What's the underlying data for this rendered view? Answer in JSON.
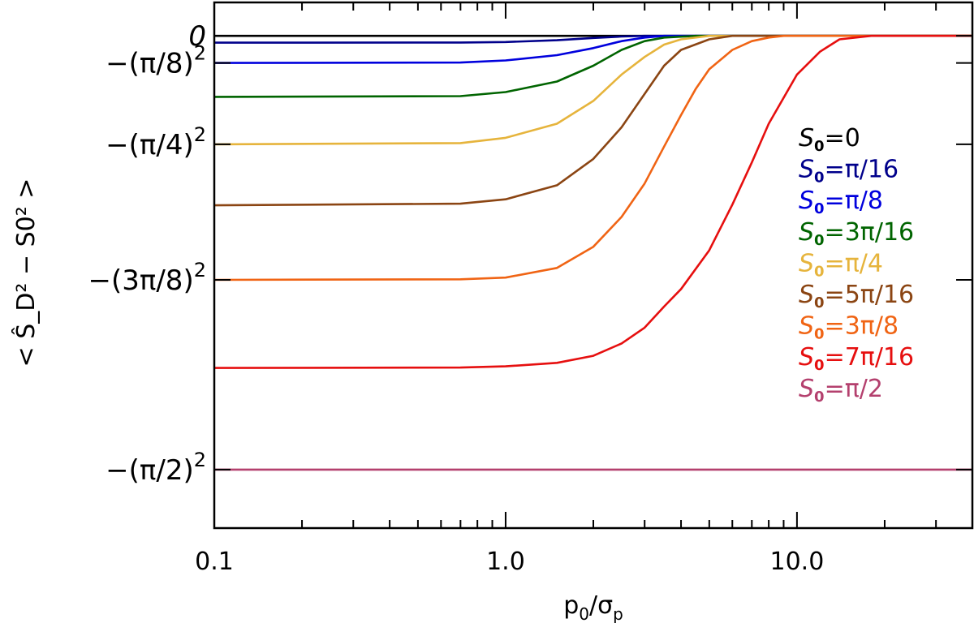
{
  "chart_data": {
    "type": "line",
    "x_scale": "log",
    "xlim": [
      0.1,
      40
    ],
    "ylim": [
      -2.8,
      0.19
    ],
    "xlabel": "p0/σp",
    "ylabel": "< Ŝ_D² − S0² >",
    "x_ticks": [
      {
        "value": 0.1,
        "label": "0.1"
      },
      {
        "value": 1.0,
        "label": "1.0"
      },
      {
        "value": 10.0,
        "label": "10.0"
      }
    ],
    "y_ticks": [
      {
        "value": 0,
        "label": "0"
      },
      {
        "value": -0.1542,
        "label": "−(π/8)²"
      },
      {
        "value": -0.6169,
        "label": "−(π/4)²"
      },
      {
        "value": -1.3879,
        "label": "−(3π/8)²"
      },
      {
        "value": -2.4674,
        "label": "−(π/2)²"
      }
    ],
    "legend_position": "right",
    "series": [
      {
        "name": "S0=0",
        "label_main": "S",
        "label_sub": "0",
        "label_rest": "=0",
        "color": "#000000",
        "points": [
          [
            0.1,
            0
          ],
          [
            40,
            0
          ]
        ]
      },
      {
        "name": "S0=π/16",
        "label_main": "S",
        "label_sub": "0",
        "label_rest": "=π/16",
        "color": "#00008b",
        "points": [
          [
            0.1,
            -0.039
          ],
          [
            0.7,
            -0.038
          ],
          [
            1.0,
            -0.035
          ],
          [
            1.5,
            -0.025
          ],
          [
            2.0,
            -0.012
          ],
          [
            2.5,
            -0.004
          ],
          [
            3.0,
            0
          ],
          [
            40,
            0
          ]
        ]
      },
      {
        "name": "S0=π/8",
        "label_main": "S",
        "label_sub": "0",
        "label_rest": "=π/8",
        "color": "#0000dd",
        "points": [
          [
            0.1,
            -0.154
          ],
          [
            0.7,
            -0.152
          ],
          [
            1.0,
            -0.14
          ],
          [
            1.5,
            -0.11
          ],
          [
            2.0,
            -0.07
          ],
          [
            2.5,
            -0.03
          ],
          [
            3.0,
            -0.01
          ],
          [
            3.5,
            0
          ],
          [
            40,
            0
          ]
        ]
      },
      {
        "name": "S0=3π/16",
        "label_main": "S",
        "label_sub": "0",
        "label_rest": "=3π/16",
        "color": "#006400",
        "points": [
          [
            0.1,
            -0.347
          ],
          [
            0.7,
            -0.343
          ],
          [
            1.0,
            -0.32
          ],
          [
            1.5,
            -0.26
          ],
          [
            2.0,
            -0.17
          ],
          [
            2.5,
            -0.08
          ],
          [
            3.0,
            -0.03
          ],
          [
            3.5,
            -0.01
          ],
          [
            4.5,
            0
          ],
          [
            40,
            0
          ]
        ]
      },
      {
        "name": "S0=π/4",
        "label_main": "S",
        "label_sub": "0",
        "label_rest": "=π/4",
        "color": "#e6b43c",
        "points": [
          [
            0.1,
            -0.617
          ],
          [
            0.7,
            -0.61
          ],
          [
            1.0,
            -0.58
          ],
          [
            1.5,
            -0.5
          ],
          [
            2.0,
            -0.37
          ],
          [
            2.5,
            -0.22
          ],
          [
            3.0,
            -0.12
          ],
          [
            3.5,
            -0.05
          ],
          [
            4.0,
            -0.02
          ],
          [
            5.0,
            0
          ],
          [
            40,
            0
          ]
        ]
      },
      {
        "name": "S0=5π/16",
        "label_main": "S",
        "label_sub": "0",
        "label_rest": "=5π/16",
        "color": "#8b4513",
        "points": [
          [
            0.1,
            -0.964
          ],
          [
            0.7,
            -0.955
          ],
          [
            1.0,
            -0.93
          ],
          [
            1.5,
            -0.85
          ],
          [
            2.0,
            -0.7
          ],
          [
            2.5,
            -0.52
          ],
          [
            3.0,
            -0.33
          ],
          [
            3.5,
            -0.17
          ],
          [
            4.0,
            -0.08
          ],
          [
            5.0,
            -0.02
          ],
          [
            6.0,
            0
          ],
          [
            40,
            0
          ]
        ]
      },
      {
        "name": "S0=3π/8",
        "label_main": "S",
        "label_sub": "0",
        "label_rest": "=3π/8",
        "color": "#f06414",
        "points": [
          [
            0.1,
            -1.388
          ],
          [
            0.7,
            -1.385
          ],
          [
            1.0,
            -1.375
          ],
          [
            1.5,
            -1.32
          ],
          [
            2.0,
            -1.2
          ],
          [
            2.5,
            -1.03
          ],
          [
            3.0,
            -0.84
          ],
          [
            3.5,
            -0.63
          ],
          [
            4.0,
            -0.45
          ],
          [
            4.5,
            -0.3
          ],
          [
            5.0,
            -0.19
          ],
          [
            6.0,
            -0.08
          ],
          [
            7.0,
            -0.03
          ],
          [
            8.0,
            -0.01
          ],
          [
            9.0,
            0
          ],
          [
            40,
            0
          ]
        ]
      },
      {
        "name": "S0=7π/16",
        "label_main": "S",
        "label_sub": "0",
        "label_rest": "=7π/16",
        "color": "#e60f0f",
        "points": [
          [
            0.1,
            -1.889
          ],
          [
            0.7,
            -1.887
          ],
          [
            1.0,
            -1.88
          ],
          [
            1.5,
            -1.86
          ],
          [
            2.0,
            -1.82
          ],
          [
            2.5,
            -1.75
          ],
          [
            3.0,
            -1.66
          ],
          [
            3.5,
            -1.54
          ],
          [
            4.0,
            -1.44
          ],
          [
            5.0,
            -1.22
          ],
          [
            6.0,
            -0.96
          ],
          [
            7.0,
            -0.72
          ],
          [
            8.0,
            -0.5
          ],
          [
            10.0,
            -0.22
          ],
          [
            12.0,
            -0.09
          ],
          [
            14.0,
            -0.02
          ],
          [
            18.0,
            0
          ],
          [
            40,
            0
          ]
        ]
      },
      {
        "name": "S0=π/2",
        "label_main": "S",
        "label_sub": "0",
        "label_rest": "=π/2",
        "color": "#b4406e",
        "points": [
          [
            0.1,
            -2.4674
          ],
          [
            40,
            -2.4674
          ]
        ]
      }
    ]
  }
}
